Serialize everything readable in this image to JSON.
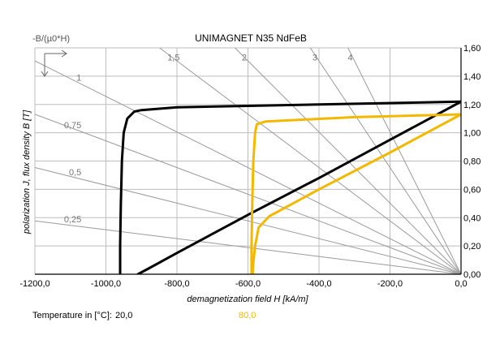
{
  "chart_data": {
    "type": "line",
    "title": "UNIMAGNET N35 NdFeB",
    "corner_label": "-B/(µ0*H)",
    "xlabel": "demagnetization field H [kA/m]",
    "ylabel": "polarization J, flux density B [T]",
    "xlim": [
      -1200,
      0
    ],
    "ylim": [
      0,
      1.6
    ],
    "x_ticks": [
      "-1200,0",
      "-1000,0",
      "-800,0",
      "-600,0",
      "-400,0",
      "-200,0",
      "0,0"
    ],
    "x_tick_values": [
      -1200,
      -1000,
      -800,
      -600,
      -400,
      -200,
      0
    ],
    "y_ticks": [
      "0,00",
      "0,20",
      "0,40",
      "0,60",
      "0,80",
      "1,00",
      "1,20",
      "1,40",
      "1,60"
    ],
    "y_tick_values": [
      0,
      0.2,
      0.4,
      0.6,
      0.8,
      1.0,
      1.2,
      1.4,
      1.6
    ],
    "y_axis_side": "right",
    "grid": true,
    "load_lines": [
      {
        "label": "0,25",
        "slope": 0.25
      },
      {
        "label": "0,5",
        "slope": 0.5
      },
      {
        "label": "0,75",
        "slope": 0.75
      },
      {
        "label": "1",
        "slope": 1
      },
      {
        "label": "1,5",
        "slope": 1.5
      },
      {
        "label": "2",
        "slope": 2
      },
      {
        "label": "3",
        "slope": 3
      },
      {
        "label": "4",
        "slope": 4
      }
    ],
    "series": [
      {
        "temperature": "20,0",
        "color": "#000000",
        "J": [
          [
            0,
            1.22
          ],
          [
            -400,
            1.2
          ],
          [
            -800,
            1.18
          ],
          [
            -900,
            1.16
          ],
          [
            -920,
            1.15
          ],
          [
            -940,
            1.1
          ],
          [
            -950,
            1.0
          ],
          [
            -955,
            0.8
          ],
          [
            -958,
            0.5
          ],
          [
            -960,
            0.2
          ],
          [
            -960,
            0
          ]
        ],
        "B": [
          [
            0,
            1.22
          ],
          [
            -200,
            0.95
          ],
          [
            -400,
            0.68
          ],
          [
            -600,
            0.42
          ],
          [
            -800,
            0.15
          ],
          [
            -880,
            0.04
          ],
          [
            -910,
            0
          ]
        ]
      },
      {
        "temperature": "80,0",
        "color": "#f5b800",
        "J": [
          [
            0,
            1.13
          ],
          [
            -300,
            1.11
          ],
          [
            -550,
            1.08
          ],
          [
            -575,
            1.06
          ],
          [
            -580,
            1.0
          ],
          [
            -585,
            0.8
          ],
          [
            -588,
            0.5
          ],
          [
            -590,
            0.2
          ],
          [
            -590,
            0
          ]
        ],
        "B": [
          [
            0,
            1.13
          ],
          [
            -200,
            0.86
          ],
          [
            -400,
            0.6
          ],
          [
            -540,
            0.41
          ],
          [
            -570,
            0.33
          ],
          [
            -580,
            0.2
          ],
          [
            -585,
            0.08
          ],
          [
            -587,
            0
          ]
        ]
      }
    ]
  },
  "legend": {
    "label": "Temperature in [°C]:",
    "entries": [
      {
        "value": "20,0",
        "color": "#000000"
      },
      {
        "value": "80,0",
        "color": "#f5b800"
      }
    ]
  }
}
